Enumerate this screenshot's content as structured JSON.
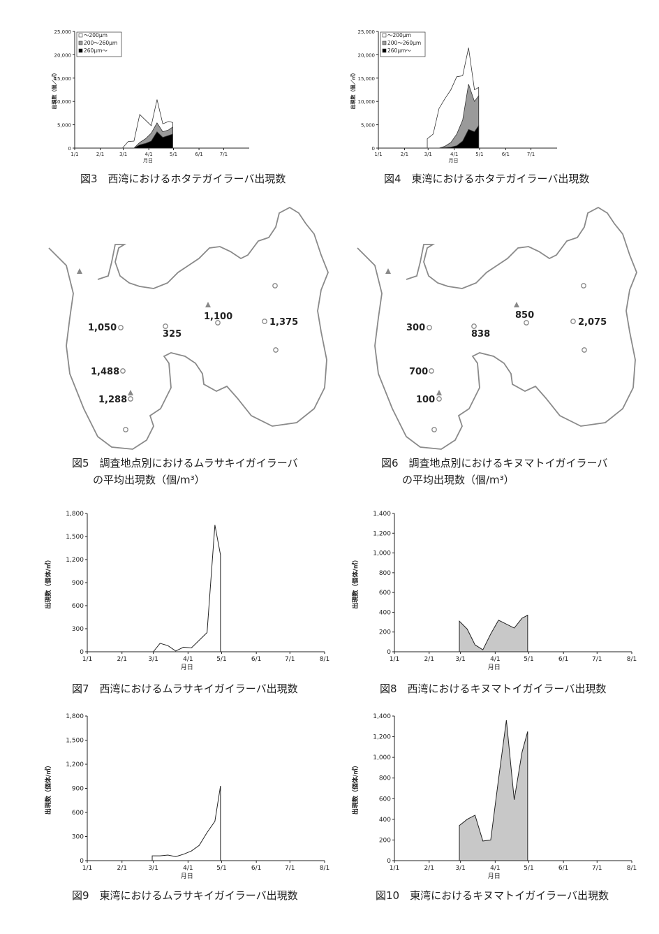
{
  "captions": {
    "fig3": "図3　西湾におけるホタテガイラーバ出現数",
    "fig4": "図4　東湾におけるホタテガイラーバ出現数",
    "fig5": "図5　調査地点別におけるムラサキイガイラーバ\n　　の平均出現数（個/m³）",
    "fig6": "図6　調査地点別におけるキヌマトイガイラーバ\n　　の平均出現数（個/m³）",
    "fig7": "図7　西湾におけるムラサキイガイラーバ出現数",
    "fig8": "図8　西湾におけるキヌマトイガイラーバ出現数",
    "fig9": "図9　東湾におけるムラサキイガイラーバ出現数",
    "fig10": "図10　東湾におけるキヌマトイガイラーバ出現数"
  },
  "map5": {
    "labels": [
      "1,050",
      "325",
      "1,100",
      "1,375",
      "1,488",
      "1,288"
    ]
  },
  "map6": {
    "labels": [
      "300",
      "838",
      "850",
      "2,075",
      "700",
      "100"
    ]
  },
  "chart_data": [
    {
      "id": "fig3",
      "type": "area",
      "stacked": true,
      "ylabel": "出現数（個／㎥）",
      "xlabel": "月日",
      "ylim": [
        0,
        25000
      ],
      "yticks": [
        "0",
        "5,000",
        "10,000",
        "15,000",
        "20,000",
        "25,000"
      ],
      "xticks": [
        "1/1",
        "2/1",
        "3/1",
        "4/1",
        "5/1",
        "6/1",
        "7/1"
      ],
      "legend": [
        "～200μm",
        "200～260μm",
        "260μm～"
      ],
      "legend_position": "top-left",
      "x": [
        "2/28",
        "3/7",
        "3/14",
        "3/21",
        "3/28",
        "4/4",
        "4/11",
        "4/18",
        "4/25",
        "4/30"
      ],
      "series": [
        {
          "name": "～200μm",
          "color": "#ffffff",
          "values": [
            0,
            1400,
            1500,
            6000,
            4000,
            1600,
            5000,
            1700,
            1800,
            1000
          ]
        },
        {
          "name": "200～260μm",
          "color": "#9a9a9a",
          "values": [
            0,
            0,
            0,
            500,
            1000,
            1700,
            1900,
            1200,
            1200,
            1500
          ]
        },
        {
          "name": "260μm～",
          "color": "#000000",
          "values": [
            0,
            0,
            0,
            700,
            1000,
            1500,
            3500,
            2300,
            2700,
            3000
          ]
        }
      ]
    },
    {
      "id": "fig4",
      "type": "area",
      "stacked": true,
      "ylabel": "出現数（個／㎥）",
      "xlabel": "月日",
      "ylim": [
        0,
        25000
      ],
      "yticks": [
        "0",
        "5,000",
        "10,000",
        "15,000",
        "20,000",
        "25,000"
      ],
      "xticks": [
        "1/1",
        "2/1",
        "3/1",
        "4/1",
        "5/1",
        "6/1",
        "7/1"
      ],
      "legend": [
        "～200μm",
        "200～260μm",
        "260μm～"
      ],
      "legend_position": "top-left",
      "x": [
        "2/28",
        "3/7",
        "3/14",
        "3/21",
        "3/28",
        "4/4",
        "4/11",
        "4/18",
        "4/25",
        "4/30"
      ],
      "series": [
        {
          "name": "～200μm",
          "color": "#ffffff",
          "values": [
            2000,
            3000,
            8500,
            10200,
            11300,
            12300,
            9500,
            7800,
            2500,
            1800
          ]
        },
        {
          "name": "200～260μm",
          "color": "#9a9a9a",
          "values": [
            0,
            0,
            0,
            300,
            1000,
            2500,
            4500,
            9700,
            6500,
            6400
          ]
        },
        {
          "name": "260μm～",
          "color": "#000000",
          "values": [
            0,
            0,
            0,
            100,
            200,
            500,
            1500,
            4000,
            3500,
            4800
          ]
        }
      ]
    },
    {
      "id": "fig7",
      "type": "area",
      "ylabel": "出現数（個体/㎥）",
      "xlabel": "月日",
      "ylim": [
        0,
        1800
      ],
      "yticks": [
        "0",
        "300",
        "600",
        "900",
        "1,200",
        "1,500",
        "1,800"
      ],
      "xticks": [
        "1/1",
        "2/1",
        "3/1",
        "4/1",
        "5/1",
        "6/1",
        "7/1",
        "8/1"
      ],
      "fill": "#ffffff",
      "x": [
        "3/1",
        "3/7",
        "3/14",
        "3/21",
        "3/28",
        "4/4",
        "4/11",
        "4/18",
        "4/25",
        "4/30"
      ],
      "values": [
        0,
        110,
        80,
        10,
        60,
        50,
        150,
        250,
        1650,
        1260
      ]
    },
    {
      "id": "fig8",
      "type": "area",
      "ylabel": "出現数（個体/㎥）",
      "xlabel": "月日",
      "ylim": [
        0,
        1400
      ],
      "yticks": [
        "0",
        "200",
        "400",
        "600",
        "800",
        "1,000",
        "1,200",
        "1,400"
      ],
      "xticks": [
        "1/1",
        "2/1",
        "3/1",
        "4/1",
        "5/1",
        "6/1",
        "7/1",
        "8/1"
      ],
      "fill": "#c8c8c8",
      "x": [
        "2/28",
        "3/7",
        "3/14",
        "3/21",
        "3/28",
        "4/4",
        "4/18",
        "4/25",
        "4/30"
      ],
      "values": [
        310,
        230,
        70,
        20,
        180,
        320,
        240,
        340,
        370
      ]
    },
    {
      "id": "fig9",
      "type": "area",
      "ylabel": "出現数（個体/㎥）",
      "xlabel": "月日",
      "ylim": [
        0,
        1800
      ],
      "yticks": [
        "0",
        "300",
        "600",
        "900",
        "1,200",
        "1,500",
        "1,800"
      ],
      "xticks": [
        "1/1",
        "2/1",
        "3/1",
        "4/1",
        "5/1",
        "6/1",
        "7/1",
        "8/1"
      ],
      "fill": "#ffffff",
      "x": [
        "2/28",
        "3/7",
        "3/14",
        "3/21",
        "3/28",
        "4/4",
        "4/11",
        "4/18",
        "4/25",
        "4/30"
      ],
      "values": [
        60,
        60,
        70,
        50,
        80,
        120,
        190,
        350,
        490,
        930
      ]
    },
    {
      "id": "fig10",
      "type": "area",
      "ylabel": "出現数（個体/㎥）",
      "xlabel": "月日",
      "ylim": [
        0,
        1400
      ],
      "yticks": [
        "0",
        "200",
        "400",
        "600",
        "800",
        "1,000",
        "1,200",
        "1,400"
      ],
      "xticks": [
        "1/1",
        "2/1",
        "3/1",
        "4/1",
        "5/1",
        "6/1",
        "7/1",
        "8/1"
      ],
      "fill": "#c8c8c8",
      "x": [
        "2/28",
        "3/7",
        "3/14",
        "3/21",
        "3/28",
        "4/4",
        "4/11",
        "4/18",
        "4/25",
        "4/30"
      ],
      "values": [
        340,
        400,
        440,
        190,
        200,
        790,
        1360,
        590,
        1050,
        1250
      ]
    }
  ]
}
